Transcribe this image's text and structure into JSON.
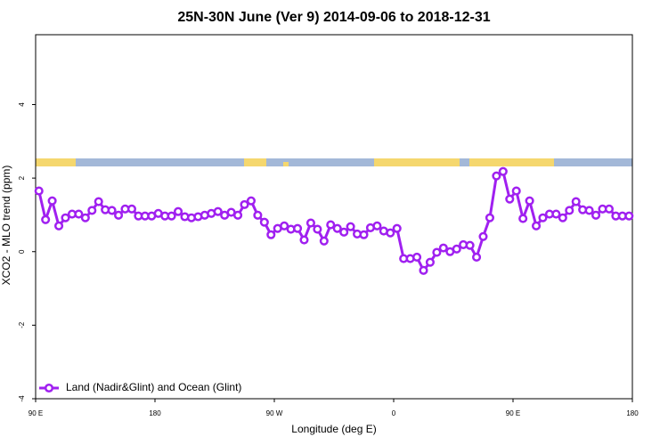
{
  "chart_data": {
    "type": "line",
    "title": "25N-30N June (Ver 9)   2014-09-06 to 2018-12-31",
    "x_label": "Longitude (deg E)",
    "y_label": "XCO2 - MLO trend (ppm)",
    "x": [
      92.5,
      97.5,
      102.5,
      107.5,
      112.5,
      117.5,
      122.5,
      127.5,
      132.5,
      137.5,
      142.5,
      147.5,
      152.5,
      157.5,
      162.5,
      167.5,
      172.5,
      177.5,
      182.5,
      187.5,
      192.5,
      197.5,
      202.5,
      207.5,
      212.5,
      217.5,
      222.5,
      227.5,
      232.5,
      237.5,
      242.5,
      247.5,
      252.5,
      257.5,
      262.5,
      267.5,
      272.5,
      277.5,
      282.5,
      287.5,
      292.5,
      297.5,
      302.5,
      307.5,
      312.5,
      317.5,
      322.5,
      327.5,
      332.5,
      337.5,
      342.5,
      347.5,
      352.5,
      357.5,
      362.5,
      367.5,
      372.5,
      377.5,
      382.5,
      387.5,
      392.5,
      397.5,
      402.5,
      407.5,
      412.5,
      417.5,
      422.5,
      427.5,
      432.5,
      437.5,
      442.5,
      447.5,
      452.5,
      457.5,
      462.5,
      467.5,
      472.5,
      477.5,
      482.5,
      487.5,
      492.5,
      497.5,
      502.5,
      507.5,
      512.5,
      517.5,
      522.5,
      527.5,
      532.5,
      537.5
    ],
    "series": [
      {
        "name": "Land (Nadir&Glint) and Ocean (Glint)",
        "color": "#a020f0",
        "values": [
          1.65,
          0.87,
          1.38,
          0.7,
          0.92,
          1.02,
          1.02,
          0.92,
          1.12,
          1.36,
          1.14,
          1.12,
          0.99,
          1.16,
          1.16,
          0.97,
          0.97,
          0.97,
          1.04,
          0.97,
          0.97,
          1.09,
          0.95,
          0.92,
          0.95,
          0.99,
          1.04,
          1.09,
          0.99,
          1.07,
          0.99,
          1.28,
          1.38,
          0.99,
          0.8,
          0.46,
          0.63,
          0.7,
          0.61,
          0.63,
          0.32,
          0.78,
          0.61,
          0.29,
          0.73,
          0.63,
          0.53,
          0.68,
          0.48,
          0.46,
          0.65,
          0.7,
          0.56,
          0.51,
          0.63,
          -0.19,
          -0.19,
          -0.15,
          -0.51,
          -0.29,
          -0.02,
          0.1,
          0.0,
          0.07,
          0.19,
          0.17,
          -0.15,
          0.41,
          0.92,
          2.06,
          2.18,
          1.43,
          1.65,
          0.9,
          1.38,
          0.7,
          0.92,
          1.02,
          1.02,
          0.92,
          1.12,
          1.36,
          1.14,
          1.12,
          0.99,
          1.16,
          1.16,
          0.97,
          0.97,
          0.97
        ]
      }
    ],
    "xlim": [
      90,
      540
    ],
    "xticks": [
      {
        "value": 90,
        "label": "90 E"
      },
      {
        "value": 180,
        "label": "180"
      },
      {
        "value": 270,
        "label": "90 W"
      },
      {
        "value": 360,
        "label": "0"
      },
      {
        "value": 450,
        "label": "90 E"
      },
      {
        "value": 540,
        "label": "180"
      }
    ],
    "ylim": [
      -4,
      5.9
    ],
    "yticks": [
      -4,
      -2,
      0,
      2,
      4
    ],
    "legend": "bottom-left"
  }
}
